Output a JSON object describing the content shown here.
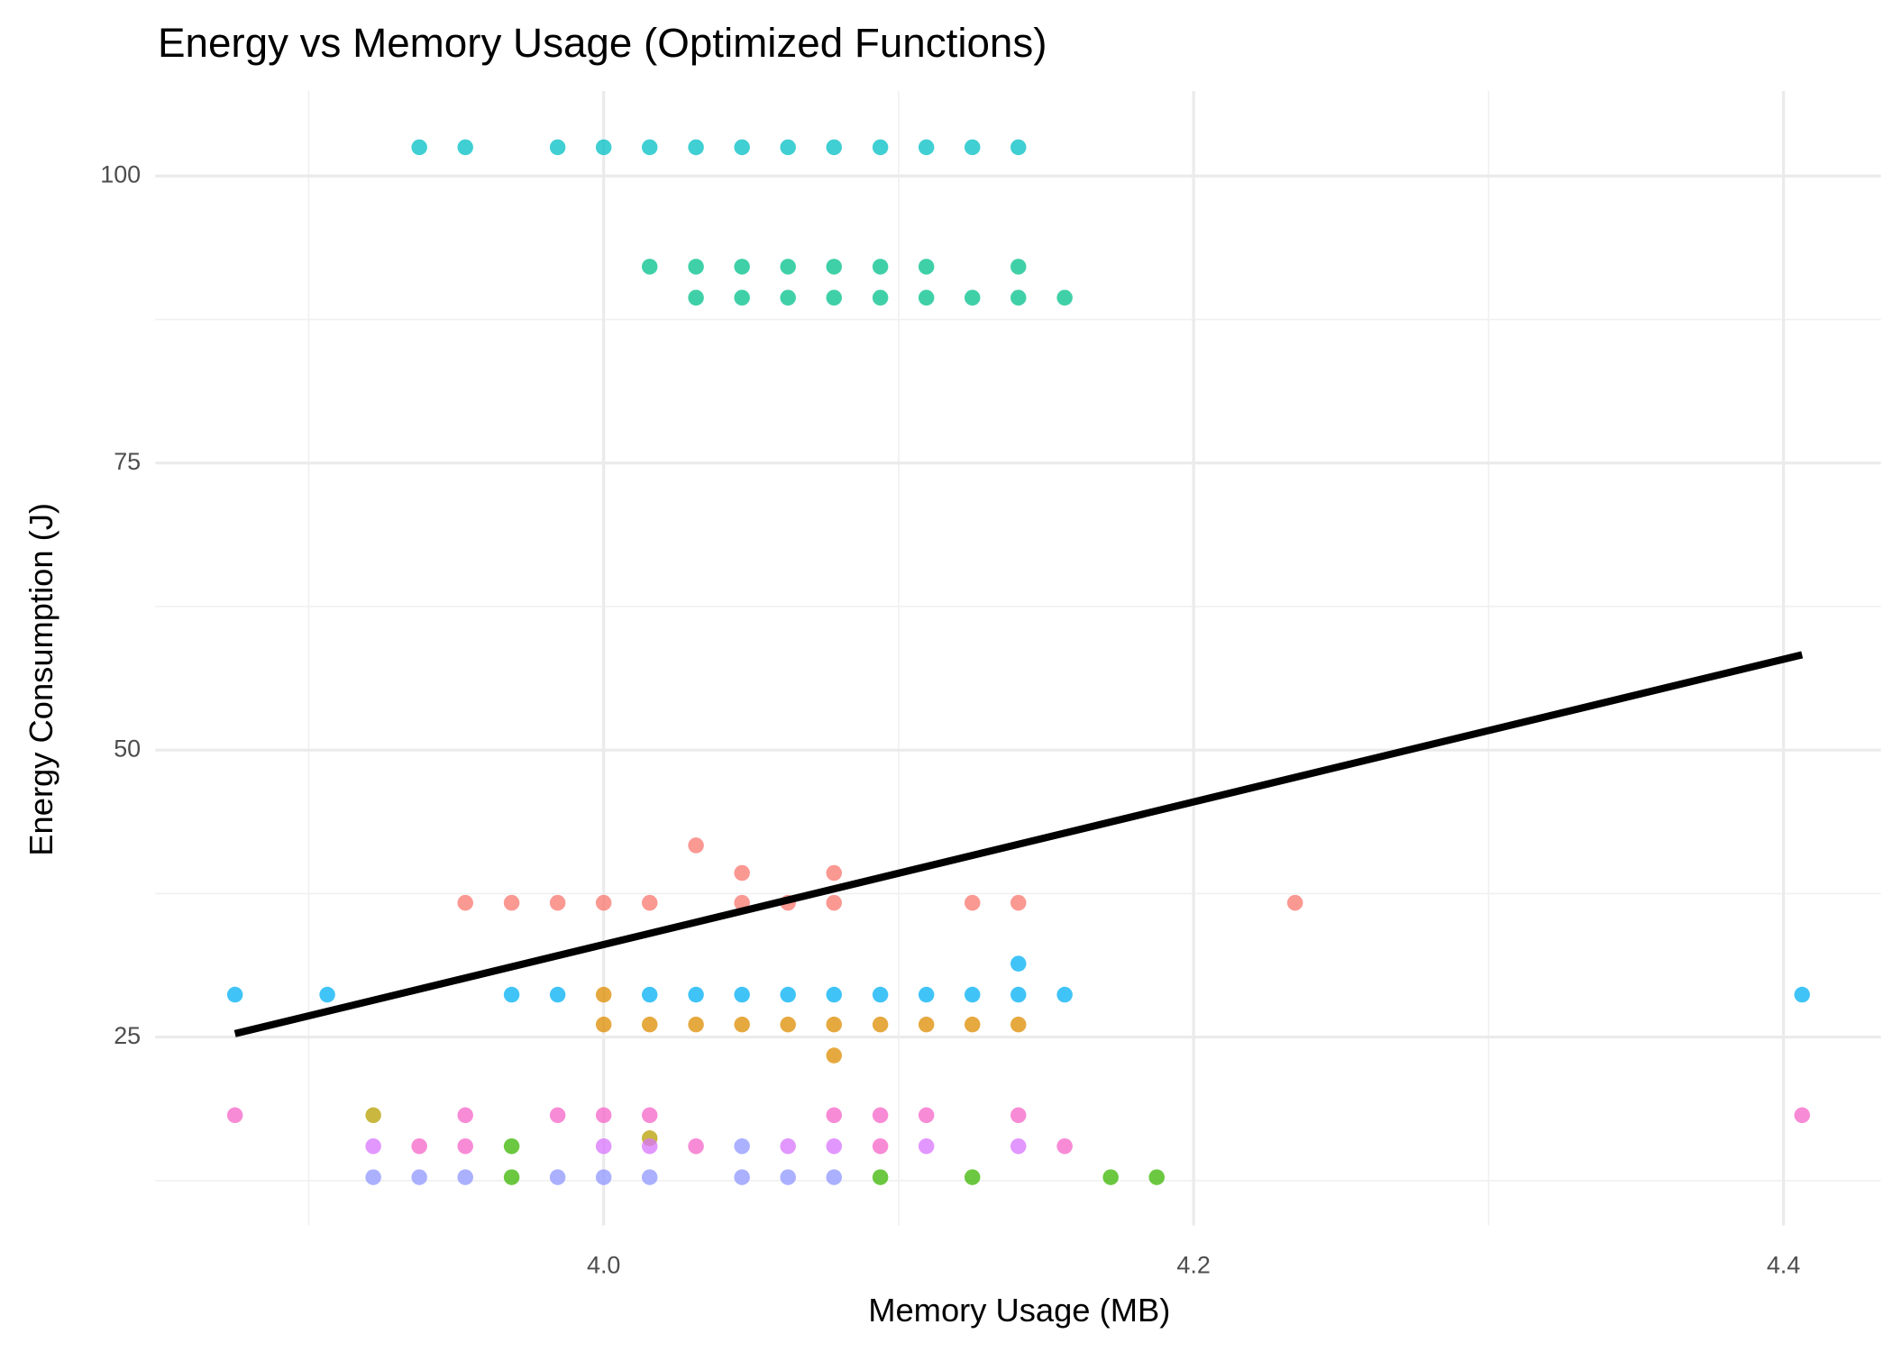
{
  "chart_data": {
    "type": "scatter",
    "title": "Energy vs Memory Usage (Optimized Functions)",
    "x_label": "Memory Usage (MB)",
    "y_label": "Energy Consumption (J)",
    "xlim": [
      3.848,
      4.433
    ],
    "ylim": [
      8.6,
      107.4
    ],
    "xticks": [
      {
        "value": 4,
        "label": "4.0"
      },
      4.2,
      4.4
    ],
    "yticks": [
      25,
      50,
      75,
      100
    ],
    "xminor": [
      3.9,
      4.1,
      4.3
    ],
    "yminor": [
      12.5,
      37.5,
      62.5,
      87.5
    ],
    "grid": true,
    "series": [
      {
        "color": "#00BFC4",
        "x": [
          3.9375,
          3.9531,
          3.9844,
          4.0,
          4.0156,
          4.0313,
          4.0469,
          4.0625,
          4.0781,
          4.0938,
          4.1094,
          4.125,
          4.1406
        ],
        "y": [
          102.5,
          102.5,
          102.5,
          102.5,
          102.5,
          102.5,
          102.5,
          102.5,
          102.5,
          102.5,
          102.5,
          102.5,
          102.5
        ]
      },
      {
        "color": "#00C08B",
        "x": [
          4.0156,
          4.0313,
          4.0469,
          4.0625,
          4.0781,
          4.0938,
          4.1094,
          4.1406,
          4.0313,
          4.0469,
          4.0625,
          4.0781,
          4.0938,
          4.1094,
          4.125,
          4.1406,
          4.1563
        ],
        "y": [
          92.1,
          92.1,
          92.1,
          92.1,
          92.1,
          92.1,
          92.1,
          92.1,
          89.4,
          89.4,
          89.4,
          89.4,
          89.4,
          89.4,
          89.4,
          89.4,
          89.4
        ]
      },
      {
        "color": "#F8766D",
        "x": [
          3.9531,
          3.9688,
          3.9844,
          4.0,
          4.0156,
          4.0469,
          4.0625,
          4.0781,
          4.125,
          4.1406,
          4.2344,
          4.0313,
          4.0469,
          4.0781
        ],
        "y": [
          36.7,
          36.7,
          36.7,
          36.7,
          36.7,
          36.7,
          36.7,
          36.7,
          36.7,
          36.7,
          36.7,
          41.7,
          39.3,
          39.3
        ]
      },
      {
        "color": "#00B0F6",
        "x": [
          3.875,
          3.9063,
          3.9688,
          3.9844,
          4.0156,
          4.0313,
          4.0469,
          4.0625,
          4.0781,
          4.0938,
          4.1094,
          4.125,
          4.1406,
          4.1563,
          4.4063,
          4.1406
        ],
        "y": [
          28.7,
          28.7,
          28.7,
          28.7,
          28.7,
          28.7,
          28.7,
          28.7,
          28.7,
          28.7,
          28.7,
          28.7,
          28.7,
          28.7,
          28.7,
          31.4
        ]
      },
      {
        "color": "#DE8C00",
        "x": [
          4.0,
          4.0,
          4.0156,
          4.0313,
          4.0469,
          4.0625,
          4.0781,
          4.0938,
          4.1094,
          4.125,
          4.1406,
          4.0781
        ],
        "y": [
          28.7,
          26.1,
          26.1,
          26.1,
          26.1,
          26.1,
          26.1,
          26.1,
          26.1,
          26.1,
          26.1,
          23.4
        ]
      },
      {
        "color": "#B79F00",
        "x": [
          3.9219,
          4.0156
        ],
        "y": [
          18.2,
          16.2
        ]
      },
      {
        "color": "#39B600",
        "x": [
          3.9688,
          3.9688,
          4.0938,
          4.125,
          4.1719,
          4.1875
        ],
        "y": [
          15.5,
          12.8,
          12.8,
          12.8,
          12.8,
          12.8
        ]
      },
      {
        "color": "#8F97FF",
        "x": [
          3.9219,
          3.9375,
          3.9531,
          3.9844,
          4.0,
          4.0156,
          4.0469,
          4.0625,
          4.0781,
          4.0469
        ],
        "y": [
          12.8,
          12.8,
          12.8,
          12.8,
          12.8,
          12.8,
          12.8,
          12.8,
          12.8,
          15.5
        ]
      },
      {
        "color": "#D874FD",
        "x": [
          3.9219,
          4.0,
          4.0156,
          4.0625,
          4.0781,
          4.1094,
          4.1406
        ],
        "y": [
          15.5,
          15.5,
          15.5,
          15.5,
          15.5,
          15.5,
          15.5
        ]
      },
      {
        "color": "#F564C8",
        "x": [
          3.875,
          3.9531,
          3.9844,
          4.0,
          4.0156,
          4.0781,
          4.0938,
          4.1094,
          4.1406,
          4.4063,
          3.9375,
          3.9531,
          4.0313,
          4.0938,
          4.1563
        ],
        "y": [
          18.2,
          18.2,
          18.2,
          18.2,
          18.2,
          18.2,
          18.2,
          18.2,
          18.2,
          18.2,
          15.5,
          15.5,
          15.5,
          15.5,
          15.5
        ]
      }
    ],
    "trend": {
      "color": "#000000",
      "x": [
        3.875,
        4.4063
      ],
      "y": [
        25.3,
        58.3
      ]
    }
  }
}
